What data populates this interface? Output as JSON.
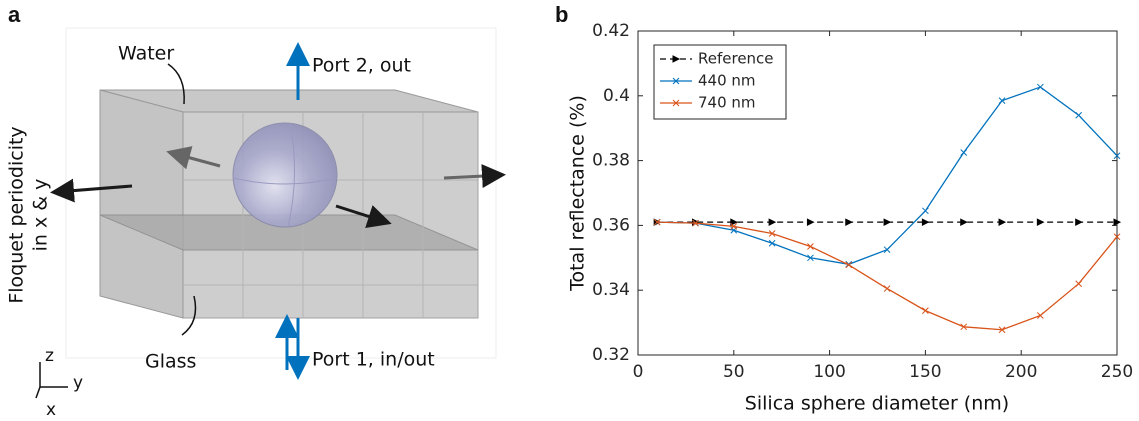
{
  "panel_labels": [
    "a",
    "b"
  ],
  "diagram": {
    "water": "Water",
    "port2": "Port 2, out",
    "floquet_lines": [
      "Floquet periodicity",
      "in x & y"
    ],
    "glass": "Glass",
    "port1": "Port 1, in/out",
    "axes": {
      "z": "z",
      "y": "y",
      "x": "x"
    }
  },
  "chart_data": {
    "type": "line",
    "x_label": "Silica sphere diameter (nm)",
    "y_label": "Total reflectance (%)",
    "x": [
      10,
      30,
      50,
      70,
      90,
      110,
      130,
      150,
      170,
      190,
      210,
      230,
      250
    ],
    "series": [
      {
        "name": "Reference",
        "color": "#000000",
        "linestyle": "dashed",
        "marker": ">",
        "values": [
          0.361,
          0.361,
          0.361,
          0.361,
          0.361,
          0.361,
          0.361,
          0.361,
          0.361,
          0.361,
          0.361,
          0.361,
          0.361
        ]
      },
      {
        "name": "440 nm",
        "color": "#0072bd",
        "linestyle": "solid",
        "marker": "x",
        "values": [
          0.361,
          0.3607,
          0.3585,
          0.3545,
          0.35,
          0.348,
          0.3525,
          0.3645,
          0.3825,
          0.3985,
          0.4027,
          0.394,
          0.3815
        ]
      },
      {
        "name": "740 nm",
        "color": "#d95319",
        "linestyle": "solid",
        "marker": "x",
        "values": [
          0.361,
          0.3607,
          0.3597,
          0.3575,
          0.3535,
          0.3478,
          0.3405,
          0.3337,
          0.3287,
          0.3278,
          0.3322,
          0.342,
          0.3565
        ]
      }
    ],
    "xlim": [
      0,
      250
    ],
    "xticks": [
      0,
      50,
      100,
      150,
      200,
      250
    ],
    "ylim": [
      0.32,
      0.42
    ],
    "yticks": [
      0.32,
      0.34,
      0.36,
      0.38,
      0.4,
      0.42
    ],
    "legend": "upper left",
    "grid": false
  }
}
